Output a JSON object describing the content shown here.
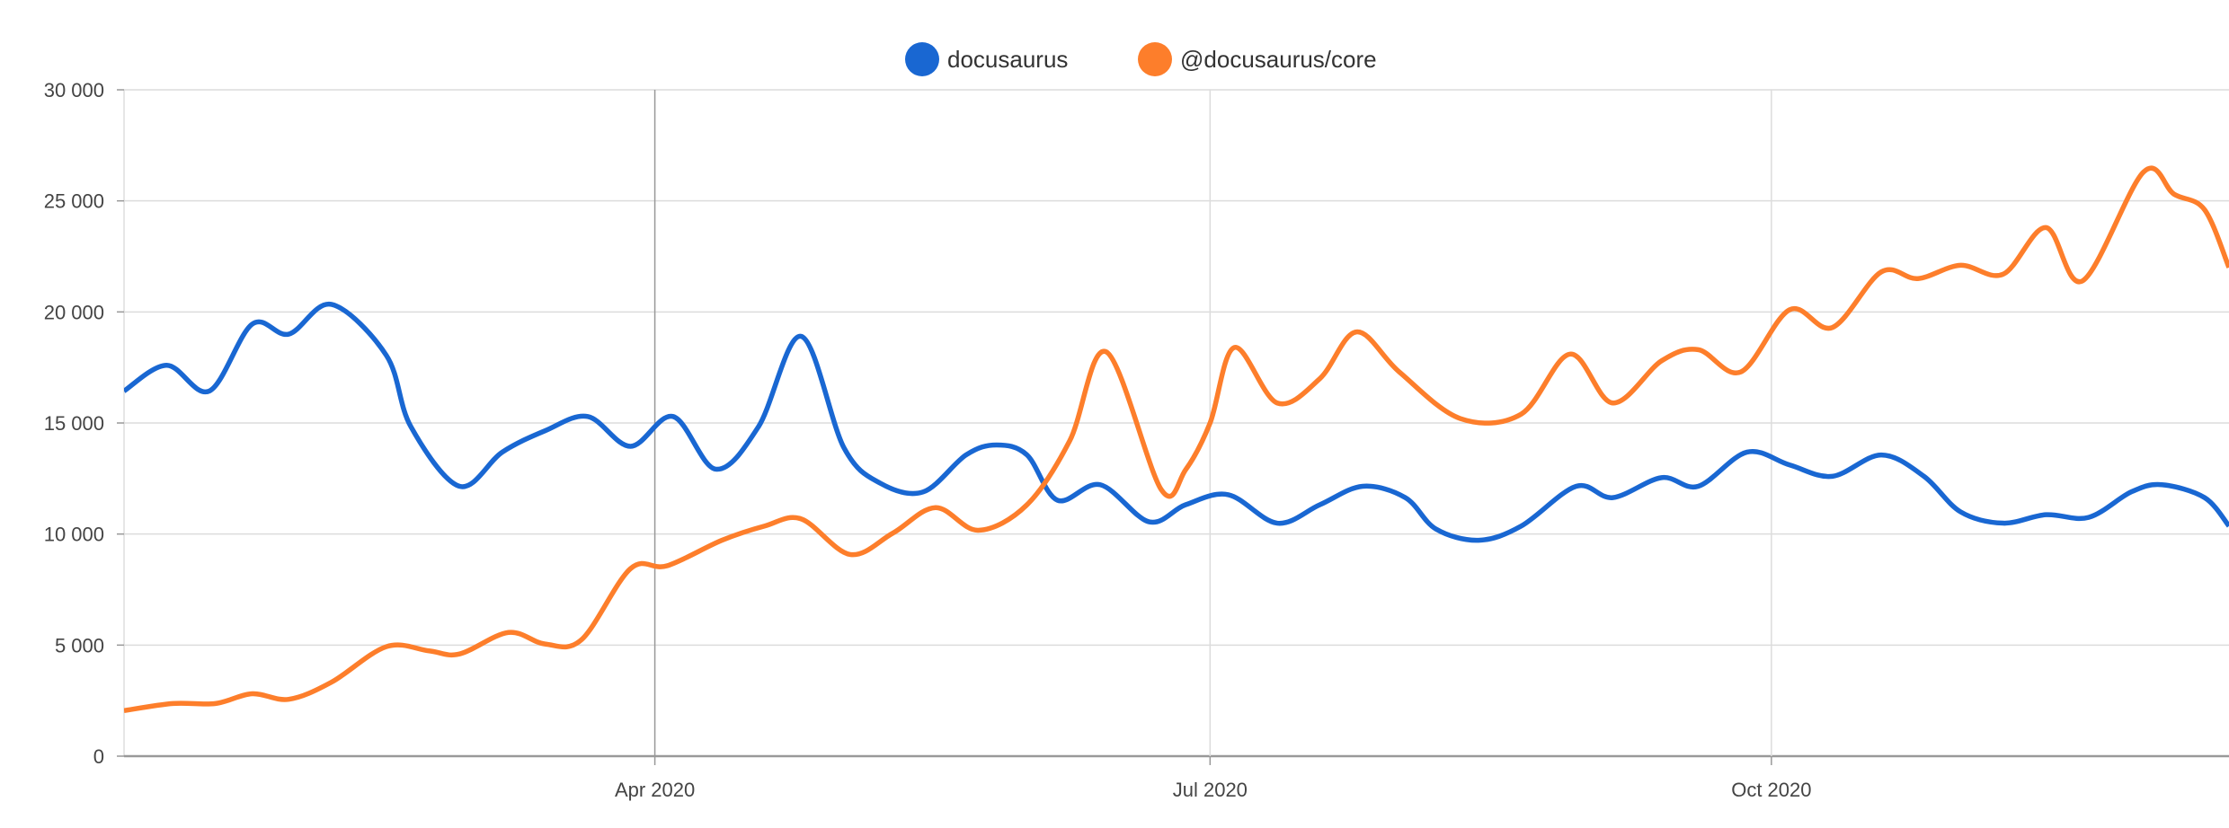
{
  "chart_data": {
    "type": "line",
    "title": "",
    "xlabel": "",
    "ylabel": "",
    "ylim": [
      0,
      30000
    ],
    "xlim": [
      "2020-01-05",
      "2020-12-15"
    ],
    "grid": true,
    "legend": "top-center",
    "y_ticks": [
      "0",
      "5 000",
      "10 000",
      "15 000",
      "20 000",
      "25 000",
      "30 000"
    ],
    "y_tick_values": [
      0,
      5000,
      10000,
      15000,
      20000,
      25000,
      30000
    ],
    "x_ticks": [
      {
        "label": "Apr 2020",
        "date": "2020-04-01"
      },
      {
        "label": "Jul 2020",
        "date": "2020-07-01"
      },
      {
        "label": "Oct 2020",
        "date": "2020-10-01"
      }
    ],
    "series": [
      {
        "name": "docusaurus",
        "color": "#1967d2",
        "points": [
          [
            "2020-01-05",
            16440
          ],
          [
            "2020-01-12",
            17600
          ],
          [
            "2020-01-19",
            16440
          ],
          [
            "2020-01-26",
            19450
          ],
          [
            "2020-02-01",
            19000
          ],
          [
            "2020-02-08",
            20340
          ],
          [
            "2020-02-17",
            18040
          ],
          [
            "2020-02-21",
            14840
          ],
          [
            "2020-02-29",
            12150
          ],
          [
            "2020-03-07",
            13690
          ],
          [
            "2020-03-14",
            14650
          ],
          [
            "2020-03-21",
            15290
          ],
          [
            "2020-03-28",
            13950
          ],
          [
            "2020-04-04",
            15290
          ],
          [
            "2020-04-11",
            12920
          ],
          [
            "2020-04-18",
            14840
          ],
          [
            "2020-04-25",
            18900
          ],
          [
            "2020-05-02",
            13880
          ],
          [
            "2020-05-08",
            12280
          ],
          [
            "2020-05-15",
            11900
          ],
          [
            "2020-05-22",
            13560
          ],
          [
            "2020-05-27",
            14010
          ],
          [
            "2020-06-01",
            13560
          ],
          [
            "2020-06-06",
            11520
          ],
          [
            "2020-06-13",
            12220
          ],
          [
            "2020-06-21",
            10550
          ],
          [
            "2020-06-27",
            11320
          ],
          [
            "2020-07-04",
            11770
          ],
          [
            "2020-07-12",
            10490
          ],
          [
            "2020-07-19",
            11320
          ],
          [
            "2020-07-26",
            12150
          ],
          [
            "2020-08-02",
            11640
          ],
          [
            "2020-08-07",
            10230
          ],
          [
            "2020-08-14",
            9720
          ],
          [
            "2020-08-21",
            10360
          ],
          [
            "2020-08-30",
            12150
          ],
          [
            "2020-09-05",
            11640
          ],
          [
            "2020-09-13",
            12540
          ],
          [
            "2020-09-19",
            12150
          ],
          [
            "2020-09-27",
            13690
          ],
          [
            "2020-10-04",
            13110
          ],
          [
            "2020-10-11",
            12600
          ],
          [
            "2020-10-19",
            13560
          ],
          [
            "2020-10-26",
            12600
          ],
          [
            "2020-11-01",
            11000
          ],
          [
            "2020-11-08",
            10490
          ],
          [
            "2020-11-15",
            10870
          ],
          [
            "2020-11-22",
            10750
          ],
          [
            "2020-11-29",
            11900
          ],
          [
            "2020-12-04",
            12220
          ],
          [
            "2020-12-11",
            11640
          ],
          [
            "2020-12-15",
            10360
          ]
        ]
      },
      {
        "name": "@docusaurus/core",
        "color": "#fd7e2b",
        "points": [
          [
            "2020-01-05",
            2050
          ],
          [
            "2020-01-13",
            2370
          ],
          [
            "2020-01-20",
            2370
          ],
          [
            "2020-01-26",
            2810
          ],
          [
            "2020-02-01",
            2560
          ],
          [
            "2020-02-08",
            3330
          ],
          [
            "2020-02-17",
            4930
          ],
          [
            "2020-02-24",
            4740
          ],
          [
            "2020-02-29",
            4600
          ],
          [
            "2020-03-08",
            5570
          ],
          [
            "2020-03-14",
            5050
          ],
          [
            "2020-03-20",
            5250
          ],
          [
            "2020-03-28",
            8440
          ],
          [
            "2020-04-03",
            8570
          ],
          [
            "2020-04-12",
            9720
          ],
          [
            "2020-04-19",
            10360
          ],
          [
            "2020-04-25",
            10680
          ],
          [
            "2020-05-03",
            9080
          ],
          [
            "2020-05-10",
            10040
          ],
          [
            "2020-05-17",
            11190
          ],
          [
            "2020-05-24",
            10170
          ],
          [
            "2020-06-01",
            11320
          ],
          [
            "2020-06-08",
            14200
          ],
          [
            "2020-06-14",
            18200
          ],
          [
            "2020-06-23",
            12000
          ],
          [
            "2020-06-27",
            12900
          ],
          [
            "2020-07-01",
            15000
          ],
          [
            "2020-07-05",
            18400
          ],
          [
            "2020-07-12",
            15900
          ],
          [
            "2020-07-19",
            17000
          ],
          [
            "2020-07-25",
            19100
          ],
          [
            "2020-08-01",
            17300
          ],
          [
            "2020-08-11",
            15200
          ],
          [
            "2020-08-21",
            15400
          ],
          [
            "2020-08-29",
            18100
          ],
          [
            "2020-09-05",
            15900
          ],
          [
            "2020-09-13",
            17800
          ],
          [
            "2020-09-19",
            18300
          ],
          [
            "2020-09-26",
            17300
          ],
          [
            "2020-10-04",
            20100
          ],
          [
            "2020-10-11",
            19300
          ],
          [
            "2020-10-19",
            21800
          ],
          [
            "2020-10-25",
            21500
          ],
          [
            "2020-11-01",
            22100
          ],
          [
            "2020-11-08",
            21700
          ],
          [
            "2020-11-15",
            23800
          ],
          [
            "2020-11-21",
            21400
          ],
          [
            "2020-12-01",
            26300
          ],
          [
            "2020-12-06",
            25300
          ],
          [
            "2020-12-11",
            24600
          ],
          [
            "2020-12-15",
            22000
          ]
        ]
      }
    ]
  }
}
